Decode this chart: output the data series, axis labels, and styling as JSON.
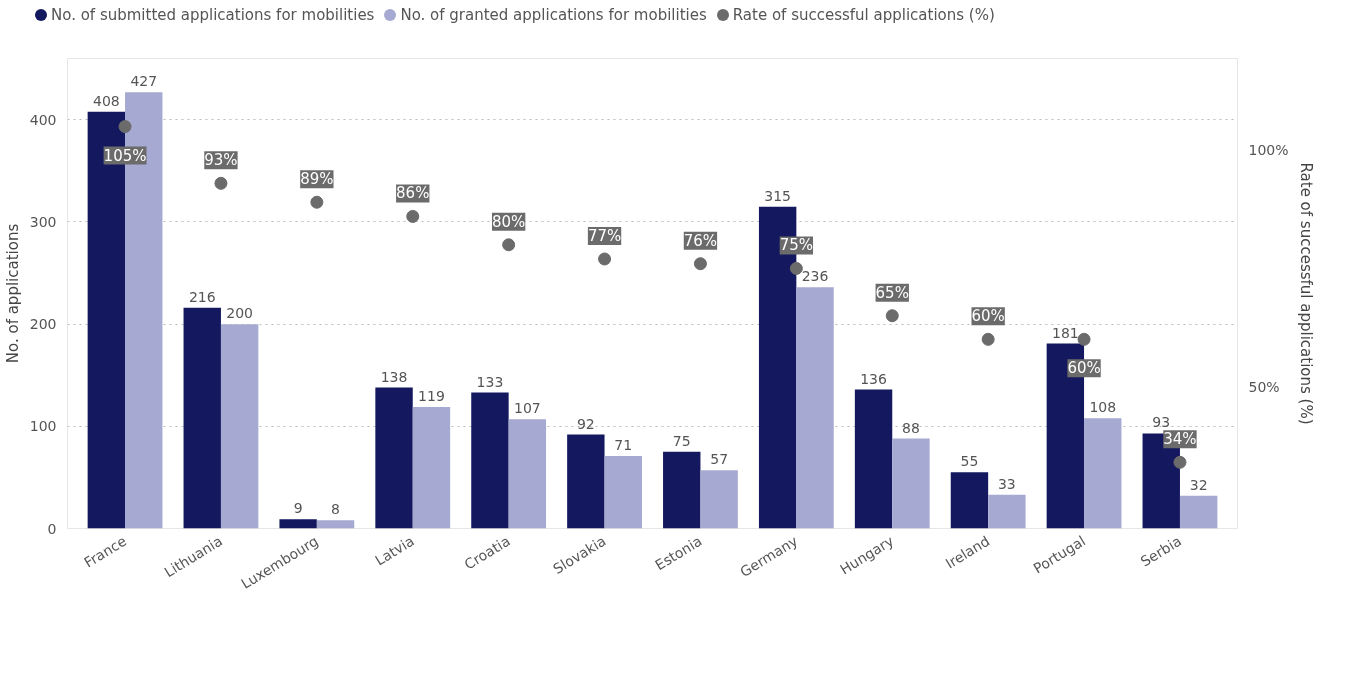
{
  "chart_data": {
    "type": "bar",
    "ylabel": "No. of applications",
    "y2label": "Rate of successful applications (%)",
    "categories": [
      "France",
      "Lithuania",
      "Luxembourg",
      "Latvia",
      "Croatia",
      "Slovakia",
      "Estonia",
      "Germany",
      "Hungary",
      "Ireland",
      "Portugal",
      "Serbia"
    ],
    "series": [
      {
        "name": "No. of submitted applications for mobilities",
        "color": "#14185e",
        "values": [
          408,
          216,
          9,
          138,
          133,
          92,
          75,
          315,
          136,
          55,
          181,
          93
        ]
      },
      {
        "name": "No. of granted applications for mobilities",
        "color": "#a6a9d1",
        "values": [
          427,
          200,
          8,
          119,
          107,
          71,
          57,
          236,
          88,
          33,
          108,
          32
        ]
      },
      {
        "name": "Rate of successful applications (%)",
        "type": "scatter",
        "axis": "y2",
        "color": "#6b6b6b",
        "values": [
          105,
          93,
          89,
          86,
          80,
          77,
          76,
          75,
          65,
          60,
          60,
          34
        ],
        "value_labels": [
          "105%",
          "93%",
          "89%",
          "86%",
          "80%",
          "77%",
          "76%",
          "75%",
          "65%",
          "60%",
          "60%",
          "34%"
        ]
      }
    ],
    "ylim": [
      0,
      460
    ],
    "yticks": [
      0,
      100,
      200,
      300,
      400
    ],
    "y2lim": [
      20,
      119.4
    ],
    "y2ticks": [
      {
        "value": 50,
        "label": "50%"
      },
      {
        "value": 100,
        "label": "100%"
      }
    ],
    "data_labels": true,
    "grid": "y",
    "legend": "top left",
    "marker": "circle"
  }
}
